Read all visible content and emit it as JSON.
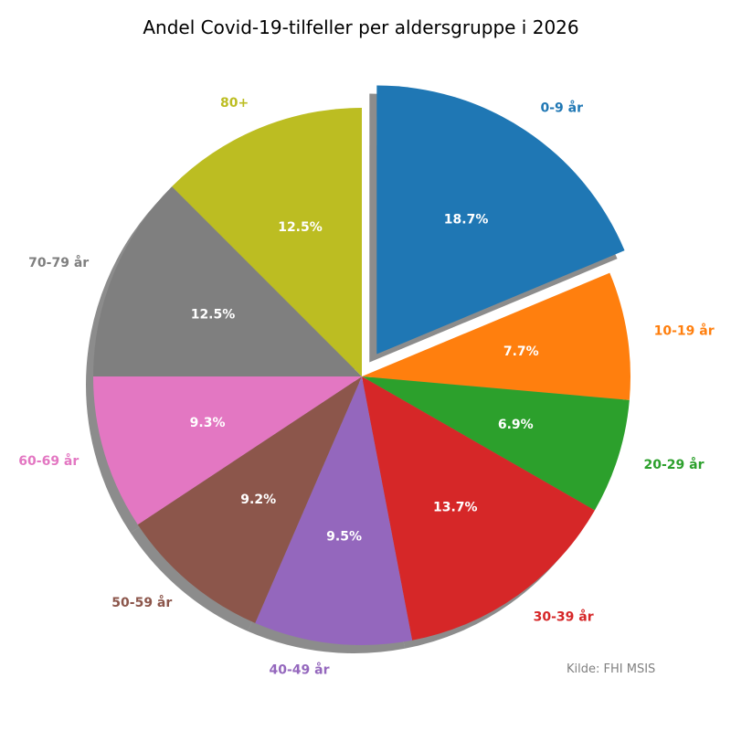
{
  "chart_data": {
    "type": "pie",
    "title": "Andel Covid-19-tilfeller per aldersgruppe i 2026",
    "categories": [
      "0-9 år",
      "10-19 år",
      "20-29 år",
      "30-39 år",
      "40-49 år",
      "50-59 år",
      "60-69 år",
      "70-79 år",
      "80+"
    ],
    "values": [
      18.7,
      7.7,
      6.9,
      13.7,
      9.5,
      9.2,
      9.3,
      12.5,
      12.5
    ],
    "value_labels": [
      "18.7%",
      "7.7%",
      "6.9%",
      "13.7%",
      "9.5%",
      "9.2%",
      "9.3%",
      "12.5%",
      "12.5%"
    ],
    "colors": [
      "#1f77b4",
      "#ff7f0e",
      "#2ca02c",
      "#d62728",
      "#9467bd",
      "#8c564b",
      "#e377c2",
      "#7f7f7f",
      "#bcbd22"
    ],
    "exploded": [
      "0-9 år"
    ],
    "start_angle_deg": 90,
    "direction": "clockwise",
    "shadow": true,
    "source": "Kilde: FHI MSIS",
    "source_color": "#808080"
  }
}
